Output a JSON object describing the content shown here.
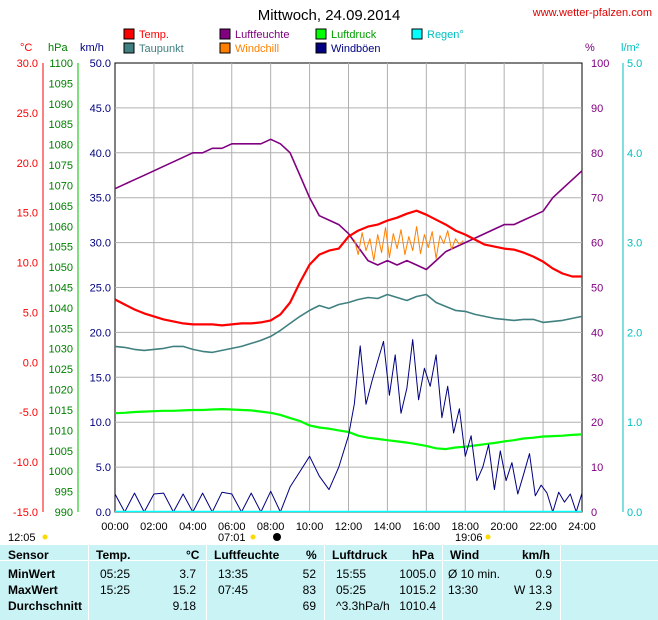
{
  "page": {
    "title": "Mittwoch, 24.09.2014",
    "site": "www.wetter-pfalzen.com"
  },
  "axes": {
    "temp_unit": "°C",
    "pressure_unit": "hPa",
    "wind_unit": "km/h",
    "humidity_unit": "%",
    "rain_unit": "l/m²",
    "temp_ticks": [
      "30.0",
      "25.0",
      "20.0",
      "15.0",
      "10.0",
      "5.0",
      "0.0",
      "-5.0",
      "-10.0",
      "-15.0"
    ],
    "pressure_ticks": [
      "1100",
      "1095",
      "1090",
      "1085",
      "1080",
      "1075",
      "1070",
      "1065",
      "1060",
      "1055",
      "1050",
      "1045",
      "1040",
      "1035",
      "1030",
      "1025",
      "1020",
      "1015",
      "1010",
      "1005",
      "1000",
      "995",
      "990"
    ],
    "wind_ticks": [
      "50.0",
      "45.0",
      "40.0",
      "35.0",
      "30.0",
      "25.0",
      "20.0",
      "15.0",
      "10.0",
      "5.0",
      "0.0"
    ],
    "humidity_ticks": [
      "100",
      "90",
      "80",
      "70",
      "60",
      "50",
      "40",
      "30",
      "20",
      "10",
      "0"
    ],
    "rain_ticks": [
      "5.0",
      "4.0",
      "3.0",
      "2.0",
      "1.0",
      "0.0"
    ],
    "time_ticks": [
      "00:00",
      "02:00",
      "04:00",
      "06:00",
      "08:00",
      "10:00",
      "12:00",
      "14:00",
      "16:00",
      "18:00",
      "20:00",
      "22:00",
      "24:00"
    ]
  },
  "legend": [
    {
      "label": "Temp.",
      "color": "#ff0000"
    },
    {
      "label": "Luftfeuchte",
      "color": "#800080"
    },
    {
      "label": "Luftdruck",
      "color": "#00ff00"
    },
    {
      "label": "Regen°",
      "color": "#00ffff"
    },
    {
      "label": "Taupunkt",
      "color": "#408080"
    },
    {
      "label": "Windchill",
      "color": "#ff8000"
    },
    {
      "label": "Windböen",
      "color": "#000080"
    }
  ],
  "sun": {
    "dawn": "07:01",
    "dusk": "19:06",
    "start": "12:05"
  },
  "chart_data": {
    "type": "line",
    "title": "Mittwoch, 24.09.2014",
    "xlabel": "",
    "x_range_hours": [
      0,
      24
    ],
    "ylim_temp": [
      -15,
      30
    ],
    "ylim_pressure": [
      990,
      1100
    ],
    "ylim_wind": [
      0,
      50
    ],
    "ylim_humidity": [
      0,
      100
    ],
    "ylim_rain": [
      0,
      5
    ],
    "grid": true,
    "series": [
      {
        "name": "Temp.",
        "axis": "temp",
        "color": "#ff0000",
        "x": [
          0,
          0.5,
          1,
          1.5,
          2,
          2.5,
          3,
          3.5,
          4,
          4.5,
          5,
          5.5,
          6,
          6.5,
          7,
          7.5,
          8,
          8.5,
          9,
          9.5,
          10,
          10.5,
          11,
          11.5,
          12,
          12.5,
          13,
          13.5,
          14,
          14.5,
          15,
          15.5,
          16,
          16.5,
          17,
          17.5,
          18,
          18.5,
          19,
          19.5,
          20,
          20.5,
          21,
          21.5,
          22,
          22.5,
          23,
          23.5,
          24
        ],
        "values": [
          6.3,
          5.8,
          5.3,
          4.9,
          4.6,
          4.3,
          4.1,
          3.9,
          3.8,
          3.8,
          3.8,
          3.7,
          3.8,
          3.9,
          3.9,
          4.0,
          4.2,
          4.8,
          6.0,
          8.0,
          9.8,
          10.8,
          11.2,
          11.4,
          12.6,
          13.2,
          13.6,
          13.8,
          14.2,
          14.5,
          14.9,
          15.2,
          14.8,
          14.3,
          13.8,
          13.2,
          12.8,
          12.3,
          11.8,
          11.6,
          11.4,
          11.3,
          11.0,
          10.6,
          10.1,
          9.4,
          8.9,
          8.6,
          8.6
        ]
      },
      {
        "name": "Taupunkt",
        "axis": "temp",
        "color": "#408080",
        "x": [
          0,
          0.5,
          1,
          1.5,
          2,
          2.5,
          3,
          3.5,
          4,
          4.5,
          5,
          5.5,
          6,
          6.5,
          7,
          7.5,
          8,
          8.5,
          9,
          9.5,
          10,
          10.5,
          11,
          11.5,
          12,
          12.5,
          13,
          13.5,
          14,
          14.5,
          15,
          15.5,
          16,
          16.5,
          17,
          17.5,
          18,
          18.5,
          19,
          19.5,
          20,
          20.5,
          21,
          21.5,
          22,
          22.5,
          23,
          23.5,
          24
        ],
        "values": [
          1.6,
          1.5,
          1.3,
          1.2,
          1.3,
          1.4,
          1.6,
          1.6,
          1.3,
          1.1,
          1.0,
          1.2,
          1.4,
          1.6,
          1.9,
          2.2,
          2.6,
          3.2,
          3.9,
          4.6,
          5.2,
          5.7,
          5.4,
          5.8,
          6.0,
          6.3,
          6.5,
          6.4,
          6.8,
          6.5,
          6.2,
          6.6,
          6.8,
          6.0,
          5.6,
          5.2,
          5.1,
          4.8,
          4.6,
          4.4,
          4.3,
          4.2,
          4.3,
          4.3,
          4.0,
          4.1,
          4.2,
          4.4,
          4.6
        ]
      },
      {
        "name": "Windchill",
        "axis": "temp",
        "color": "#ff8000",
        "x": [
          12.3,
          12.5,
          12.7,
          12.9,
          13.1,
          13.3,
          13.5,
          13.7,
          13.9,
          14.1,
          14.3,
          14.5,
          14.7,
          14.9,
          15.1,
          15.3,
          15.5,
          15.7,
          15.9,
          16.1,
          16.3,
          16.5,
          16.7,
          16.9,
          17.1,
          17.3,
          17.5,
          17.7,
          17.9
        ],
        "values": [
          12.3,
          10.8,
          13.0,
          11.2,
          12.4,
          10.2,
          12.8,
          11.0,
          13.5,
          10.5,
          12.9,
          11.4,
          13.3,
          10.8,
          12.6,
          11.2,
          13.6,
          10.9,
          12.8,
          11.5,
          13.1,
          10.4,
          12.7,
          11.9,
          13.2,
          11.3,
          12.4,
          11.8,
          12.2
        ]
      },
      {
        "name": "Luftfeuchte",
        "axis": "humidity",
        "color": "#800080",
        "x": [
          0,
          0.5,
          1,
          1.5,
          2,
          2.5,
          3,
          3.5,
          4,
          4.5,
          5,
          5.5,
          6,
          6.5,
          7,
          7.5,
          8,
          8.5,
          9,
          9.5,
          10,
          10.5,
          11,
          11.5,
          12,
          12.5,
          13,
          13.5,
          14,
          14.5,
          15,
          15.5,
          16,
          16.5,
          17,
          17.5,
          18,
          18.5,
          19,
          19.5,
          20,
          20.5,
          21,
          21.5,
          22,
          22.5,
          23,
          23.5,
          24
        ],
        "values": [
          72,
          73,
          74,
          75,
          76,
          77,
          78,
          79,
          80,
          80,
          81,
          81,
          82,
          82,
          82,
          82,
          83,
          82,
          80,
          75,
          70,
          66,
          65,
          64,
          62,
          59,
          56,
          55,
          56,
          55,
          56,
          55,
          54,
          56,
          58,
          59,
          60,
          61,
          62,
          63,
          64,
          64,
          65,
          66,
          67,
          70,
          72,
          74,
          76
        ]
      },
      {
        "name": "Luftdruck",
        "axis": "pressure",
        "color": "#00ff00",
        "x": [
          0,
          0.5,
          1,
          1.5,
          2,
          2.5,
          3,
          3.5,
          4,
          4.5,
          5,
          5.5,
          6,
          6.5,
          7,
          7.5,
          8,
          8.5,
          9,
          9.5,
          10,
          10.5,
          11,
          11.5,
          12,
          12.5,
          13,
          13.5,
          14,
          14.5,
          15,
          15.5,
          16,
          16.5,
          17,
          17.5,
          18,
          18.5,
          19,
          19.5,
          20,
          20.5,
          21,
          21.5,
          22,
          22.5,
          23,
          23.5,
          24
        ],
        "values": [
          1014.2,
          1014.3,
          1014.5,
          1014.6,
          1014.7,
          1014.8,
          1014.8,
          1014.9,
          1015.0,
          1015.0,
          1015.1,
          1015.2,
          1015.1,
          1015.0,
          1014.9,
          1014.6,
          1014.3,
          1013.8,
          1013.0,
          1012.3,
          1011.2,
          1010.7,
          1010.4,
          1010.0,
          1009.6,
          1008.7,
          1008.2,
          1007.9,
          1007.6,
          1007.3,
          1007.0,
          1006.6,
          1006.2,
          1005.6,
          1005.4,
          1005.8,
          1006.0,
          1006.3,
          1006.6,
          1006.9,
          1007.3,
          1007.6,
          1008.0,
          1008.2,
          1008.5,
          1008.6,
          1008.7,
          1008.9,
          1009.0
        ]
      },
      {
        "name": "Windböen",
        "axis": "wind",
        "color": "#000080",
        "x": [
          0,
          0.5,
          1,
          1.5,
          2,
          2.5,
          3,
          3.5,
          4,
          4.5,
          5,
          5.5,
          6,
          6.5,
          7,
          7.5,
          8,
          8.5,
          9,
          9.5,
          10,
          10.5,
          11,
          11.5,
          12,
          12.3,
          12.6,
          12.9,
          13.2,
          13.5,
          13.8,
          14.1,
          14.4,
          14.7,
          15,
          15.3,
          15.6,
          15.9,
          16.2,
          16.5,
          16.8,
          17.1,
          17.4,
          17.7,
          18,
          18.3,
          18.6,
          18.9,
          19.2,
          19.5,
          19.8,
          20.1,
          20.4,
          20.7,
          21,
          21.3,
          21.6,
          21.9,
          22.2,
          22.5,
          22.8,
          23.1,
          23.4,
          23.7,
          24
        ],
        "values": [
          2.0,
          0,
          2.1,
          0,
          2.0,
          2.1,
          0,
          2.0,
          0,
          2.1,
          0,
          2.2,
          2.0,
          0,
          2.1,
          0,
          2.3,
          0,
          2.8,
          4.5,
          6.2,
          4.0,
          2.5,
          5.0,
          8.5,
          12.0,
          18.5,
          12.0,
          14.5,
          16.8,
          19.0,
          13.0,
          17.5,
          11.0,
          13.8,
          19.2,
          12.5,
          16.0,
          14.0,
          17.5,
          10.5,
          14.0,
          8.8,
          11.5,
          6.2,
          8.5,
          3.5,
          5.0,
          7.5,
          2.5,
          6.8,
          3.5,
          5.5,
          2.0,
          4.2,
          6.5,
          1.8,
          3.0,
          2.1,
          0,
          2.2,
          1.1,
          2.0,
          0,
          2.1
        ]
      }
    ]
  },
  "stats": {
    "headers": {
      "sensor": "Sensor",
      "temp": "Temp.",
      "temp_unit": "°C",
      "humidity": "Luftfeuchte",
      "humidity_unit": "%",
      "pressure": "Luftdruck",
      "pressure_unit": "hPa",
      "wind": "Wind",
      "wind_unit": "km/h"
    },
    "rows": [
      {
        "label": "MinWert",
        "temp_time": "05:25",
        "temp_val": "3.7",
        "hum_time": "13:35",
        "hum_val": "52",
        "press_time": "15:55",
        "press_val": "1005.0",
        "wind_time": "Ø 10 min.",
        "wind_val": "0.9"
      },
      {
        "label": "MaxWert",
        "temp_time": "15:25",
        "temp_val": "15.2",
        "hum_time": "07:45",
        "hum_val": "83",
        "press_time": "05:25",
        "press_val": "1015.2",
        "wind_time": "13:30",
        "wind_val": "W 13.3"
      },
      {
        "label": "Durchschnitt",
        "temp_time": "",
        "temp_val": "9.18",
        "hum_time": "",
        "hum_val": "69",
        "press_time": "^3.3hPa/h",
        "press_val": "1010.4",
        "wind_time": "",
        "wind_val": "2.9"
      }
    ]
  }
}
